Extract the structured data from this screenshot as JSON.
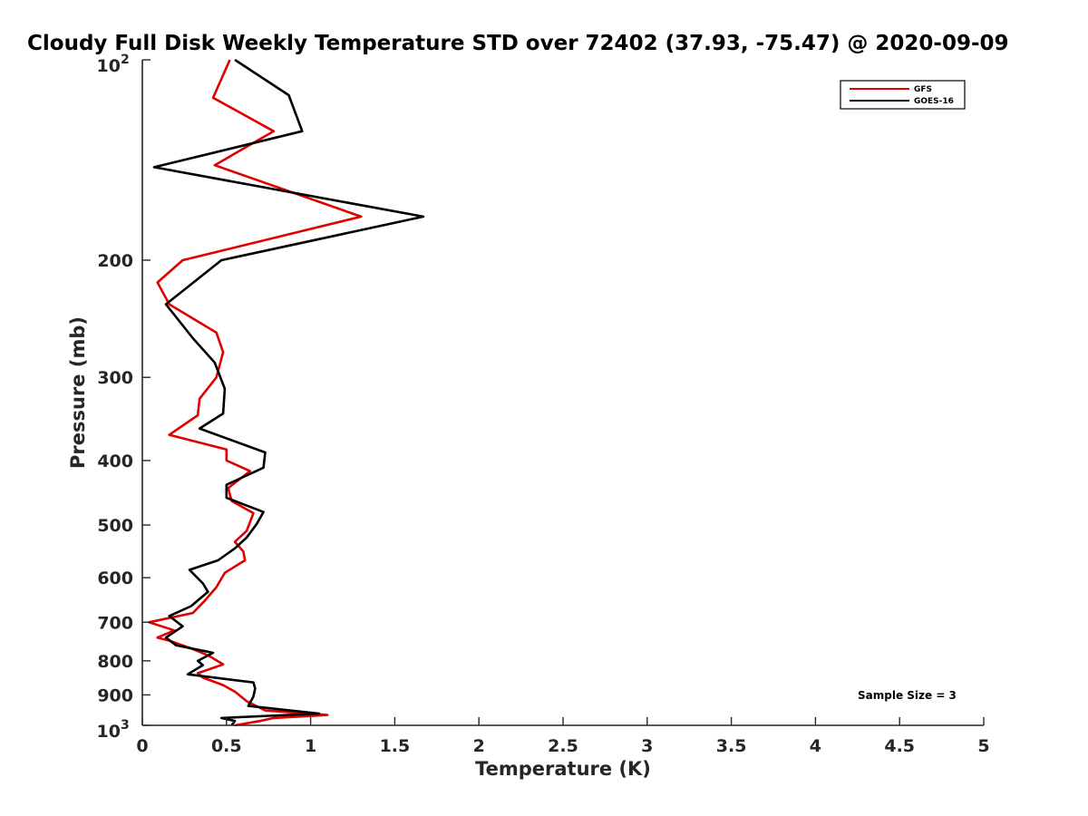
{
  "chart_data": {
    "type": "line",
    "title": "Cloudy Full Disk Weekly Temperature STD over 72402 (37.93, -75.47) @ 2020-09-09",
    "xlabel": "Temperature (K)",
    "ylabel": "Pressure (mb)",
    "xlim": [
      0,
      5
    ],
    "ylim": [
      100,
      1000
    ],
    "y_scale": "log",
    "y_reversed": true,
    "x_ticks": [
      0,
      0.5,
      1,
      1.5,
      2,
      2.5,
      3,
      3.5,
      4,
      4.5,
      5
    ],
    "x_tick_labels": [
      "0",
      "0.5",
      "1",
      "1.5",
      "2",
      "2.5",
      "3",
      "3.5",
      "4",
      "4.5",
      "5"
    ],
    "y_ticks": [
      200,
      300,
      400,
      500,
      600,
      700,
      800,
      900
    ],
    "y_tick_labels": [
      "200",
      "300",
      "400",
      "500",
      "600",
      "700",
      "800",
      "900"
    ],
    "y_end_labels": [
      {
        "value": 100,
        "base": "10",
        "exp": "2"
      },
      {
        "value": 1000,
        "base": "10",
        "exp": "3"
      }
    ],
    "grid": false,
    "legend": "top-right",
    "annotation": "Sample Size = 3",
    "series": [
      {
        "name": "GFS",
        "color": "#e00000",
        "points": [
          [
            0.52,
            100
          ],
          [
            0.42,
            114
          ],
          [
            0.78,
            128
          ],
          [
            0.43,
            144
          ],
          [
            1.3,
            172
          ],
          [
            0.24,
            200
          ],
          [
            0.09,
            216
          ],
          [
            0.16,
            233
          ],
          [
            0.44,
            257
          ],
          [
            0.48,
            275
          ],
          [
            0.44,
            300
          ],
          [
            0.34,
            323
          ],
          [
            0.33,
            342
          ],
          [
            0.16,
            366
          ],
          [
            0.5,
            385
          ],
          [
            0.5,
            400
          ],
          [
            0.64,
            415
          ],
          [
            0.51,
            440
          ],
          [
            0.53,
            460
          ],
          [
            0.66,
            480
          ],
          [
            0.62,
            510
          ],
          [
            0.55,
            530
          ],
          [
            0.6,
            548
          ],
          [
            0.61,
            565
          ],
          [
            0.49,
            590
          ],
          [
            0.44,
            620
          ],
          [
            0.37,
            650
          ],
          [
            0.3,
            678
          ],
          [
            0.04,
            700
          ],
          [
            0.19,
            720
          ],
          [
            0.09,
            738
          ],
          [
            0.16,
            746
          ],
          [
            0.3,
            768
          ],
          [
            0.39,
            785
          ],
          [
            0.48,
            810
          ],
          [
            0.33,
            835
          ],
          [
            0.36,
            848
          ],
          [
            0.48,
            870
          ],
          [
            0.55,
            890
          ],
          [
            0.62,
            920
          ],
          [
            0.73,
            950
          ],
          [
            1.1,
            965
          ],
          [
            0.78,
            975
          ],
          [
            0.7,
            985
          ],
          [
            0.55,
            1000
          ]
        ]
      },
      {
        "name": "GOES-16",
        "color": "#000000",
        "points": [
          [
            0.55,
            100
          ],
          [
            0.87,
            113
          ],
          [
            0.95,
            128
          ],
          [
            0.07,
            145
          ],
          [
            1.67,
            172
          ],
          [
            0.47,
            200
          ],
          [
            0.14,
            233
          ],
          [
            0.3,
            262
          ],
          [
            0.43,
            285
          ],
          [
            0.49,
            312
          ],
          [
            0.48,
            340
          ],
          [
            0.34,
            358
          ],
          [
            0.73,
            389
          ],
          [
            0.72,
            410
          ],
          [
            0.5,
            435
          ],
          [
            0.5,
            455
          ],
          [
            0.72,
            478
          ],
          [
            0.68,
            498
          ],
          [
            0.62,
            522
          ],
          [
            0.55,
            542
          ],
          [
            0.45,
            565
          ],
          [
            0.28,
            584
          ],
          [
            0.36,
            612
          ],
          [
            0.39,
            630
          ],
          [
            0.29,
            662
          ],
          [
            0.16,
            685
          ],
          [
            0.24,
            710
          ],
          [
            0.14,
            738
          ],
          [
            0.2,
            758
          ],
          [
            0.42,
            778
          ],
          [
            0.33,
            800
          ],
          [
            0.36,
            812
          ],
          [
            0.27,
            838
          ],
          [
            0.66,
            862
          ],
          [
            0.67,
            880
          ],
          [
            0.66,
            905
          ],
          [
            0.63,
            935
          ],
          [
            1.05,
            960
          ],
          [
            0.47,
            975
          ],
          [
            0.55,
            985
          ],
          [
            0.53,
            1000
          ]
        ]
      }
    ]
  }
}
